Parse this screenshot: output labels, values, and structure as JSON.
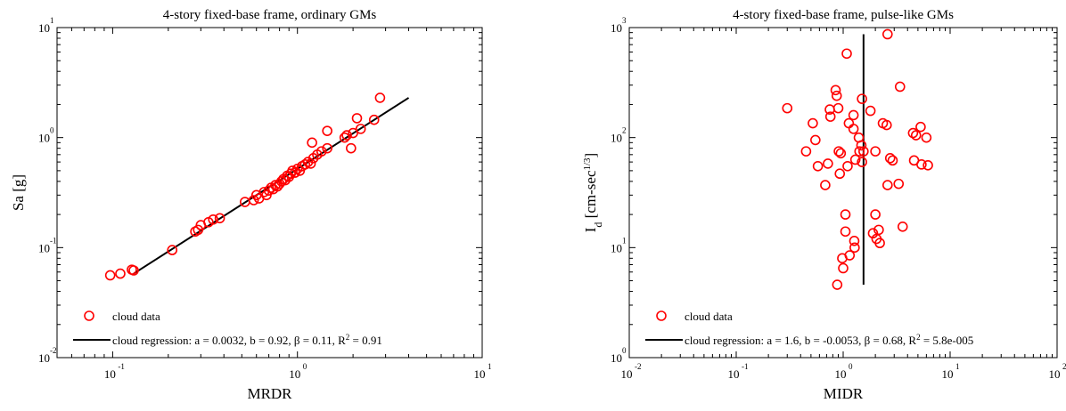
{
  "chart_data": [
    {
      "type": "scatter",
      "title": "4-story fixed-base frame, ordinary GMs",
      "xlabel": "MRDR",
      "ylabel": "Sa  [g]",
      "xscale": "log",
      "yscale": "log",
      "xlim": [
        0.05,
        10
      ],
      "ylim": [
        0.01,
        10
      ],
      "xticks": [
        {
          "base": "10",
          "exp": "-1",
          "value": 0.1
        },
        {
          "base": "10",
          "exp": "0",
          "value": 1
        },
        {
          "base": "10",
          "exp": "1",
          "value": 10
        }
      ],
      "yticks": [
        {
          "base": "10",
          "exp": "-2",
          "value": 0.01
        },
        {
          "base": "10",
          "exp": "-1",
          "value": 0.1
        },
        {
          "base": "10",
          "exp": "0",
          "value": 1
        },
        {
          "base": "10",
          "exp": "1",
          "value": 10
        }
      ],
      "grid": false,
      "legend_position": "bottom-left",
      "legend": {
        "scatter": "cloud data",
        "line": "cloud regression: a = 0.0032, b = 0.92, β = 0.11, R",
        "line_sup": "2",
        "line_tail": " = 0.91"
      },
      "series": [
        {
          "name": "cloud data",
          "marker": "circle",
          "color": "#ff0000",
          "points": [
            [
              0.097,
              0.056
            ],
            [
              0.11,
              0.058
            ],
            [
              0.127,
              0.063
            ],
            [
              0.13,
              0.062
            ],
            [
              0.21,
              0.095
            ],
            [
              0.28,
              0.14
            ],
            [
              0.29,
              0.145
            ],
            [
              0.3,
              0.16
            ],
            [
              0.33,
              0.17
            ],
            [
              0.35,
              0.18
            ],
            [
              0.38,
              0.185
            ],
            [
              0.52,
              0.26
            ],
            [
              0.58,
              0.27
            ],
            [
              0.6,
              0.3
            ],
            [
              0.62,
              0.28
            ],
            [
              0.66,
              0.32
            ],
            [
              0.68,
              0.3
            ],
            [
              0.7,
              0.33
            ],
            [
              0.72,
              0.35
            ],
            [
              0.74,
              0.34
            ],
            [
              0.76,
              0.37
            ],
            [
              0.78,
              0.36
            ],
            [
              0.8,
              0.38
            ],
            [
              0.82,
              0.4
            ],
            [
              0.84,
              0.42
            ],
            [
              0.86,
              0.41
            ],
            [
              0.88,
              0.45
            ],
            [
              0.9,
              0.44
            ],
            [
              0.92,
              0.47
            ],
            [
              0.94,
              0.5
            ],
            [
              0.97,
              0.48
            ],
            [
              1.0,
              0.52
            ],
            [
              1.03,
              0.5
            ],
            [
              1.06,
              0.55
            ],
            [
              1.1,
              0.57
            ],
            [
              1.14,
              0.6
            ],
            [
              1.18,
              0.58
            ],
            [
              1.22,
              0.65
            ],
            [
              1.28,
              0.7
            ],
            [
              1.35,
              0.75
            ],
            [
              1.45,
              0.8
            ],
            [
              1.2,
              0.9
            ],
            [
              1.45,
              1.15
            ],
            [
              1.8,
              1.0
            ],
            [
              1.85,
              1.05
            ],
            [
              1.95,
              0.8
            ],
            [
              2.0,
              1.1
            ],
            [
              2.1,
              1.5
            ],
            [
              2.2,
              1.2
            ],
            [
              2.6,
              1.45
            ],
            [
              2.8,
              2.3
            ]
          ]
        },
        {
          "name": "cloud regression",
          "type": "line",
          "color": "#000000",
          "x": [
            0.13,
            4.0
          ],
          "y": [
            0.058,
            2.3
          ]
        }
      ]
    },
    {
      "type": "scatter",
      "title": "4-story fixed-base frame, pulse-like GMs",
      "xlabel": "MIDR",
      "ylabel": "I",
      "ylabel_sub": "d",
      "ylabel_tail": " [cm-sec",
      "ylabel_sup": "1/3",
      "ylabel_end": "]",
      "xscale": "log",
      "yscale": "log",
      "xlim": [
        0.01,
        100
      ],
      "ylim": [
        1,
        1000
      ],
      "xticks": [
        {
          "base": "10",
          "exp": "-2",
          "value": 0.01
        },
        {
          "base": "10",
          "exp": "-1",
          "value": 0.1
        },
        {
          "base": "10",
          "exp": "0",
          "value": 1
        },
        {
          "base": "10",
          "exp": "1",
          "value": 10
        },
        {
          "base": "10",
          "exp": "2",
          "value": 100
        }
      ],
      "yticks": [
        {
          "base": "10",
          "exp": "0",
          "value": 1
        },
        {
          "base": "10",
          "exp": "1",
          "value": 10
        },
        {
          "base": "10",
          "exp": "2",
          "value": 100
        },
        {
          "base": "10",
          "exp": "3",
          "value": 1000
        }
      ],
      "grid": false,
      "legend_position": "bottom-left",
      "legend": {
        "scatter": "cloud data",
        "line": "cloud regression: a = 1.6, b = -0.0053, β = 0.68, R",
        "line_sup": "2",
        "line_tail": " = 5.8e-005"
      },
      "series": [
        {
          "name": "cloud data",
          "marker": "circle",
          "color": "#ff0000",
          "points": [
            [
              0.3,
              185
            ],
            [
              0.45,
              75
            ],
            [
              0.52,
              135
            ],
            [
              0.55,
              95
            ],
            [
              0.58,
              55
            ],
            [
              0.68,
              37
            ],
            [
              0.72,
              58
            ],
            [
              0.75,
              180
            ],
            [
              0.76,
              155
            ],
            [
              0.85,
              270
            ],
            [
              0.87,
              240
            ],
            [
              0.88,
              4.6
            ],
            [
              0.9,
              185
            ],
            [
              0.91,
              75
            ],
            [
              0.93,
              47
            ],
            [
              0.95,
              72
            ],
            [
              0.98,
              8
            ],
            [
              1.0,
              6.5
            ],
            [
              1.05,
              20
            ],
            [
              1.05,
              14
            ],
            [
              1.08,
              580
            ],
            [
              1.1,
              55
            ],
            [
              1.13,
              135
            ],
            [
              1.15,
              8.5
            ],
            [
              1.25,
              160
            ],
            [
              1.25,
              120
            ],
            [
              1.27,
              11.5
            ],
            [
              1.28,
              10
            ],
            [
              1.3,
              63
            ],
            [
              1.4,
              100
            ],
            [
              1.42,
              75
            ],
            [
              1.48,
              85
            ],
            [
              1.5,
              60
            ],
            [
              1.5,
              225
            ],
            [
              1.55,
              75
            ],
            [
              1.8,
              175
            ],
            [
              1.9,
              13.5
            ],
            [
              2.0,
              75
            ],
            [
              2.0,
              20
            ],
            [
              2.05,
              12
            ],
            [
              2.15,
              14.5
            ],
            [
              2.2,
              11
            ],
            [
              2.35,
              135
            ],
            [
              2.55,
              130
            ],
            [
              2.6,
              870
            ],
            [
              2.6,
              37
            ],
            [
              2.75,
              65
            ],
            [
              2.9,
              62
            ],
            [
              3.3,
              38
            ],
            [
              3.4,
              290
            ],
            [
              3.6,
              15.5
            ],
            [
              4.5,
              110
            ],
            [
              4.6,
              62
            ],
            [
              4.8,
              105
            ],
            [
              5.3,
              125
            ],
            [
              5.4,
              57
            ],
            [
              6.0,
              100
            ],
            [
              6.2,
              56
            ]
          ]
        },
        {
          "name": "cloud regression",
          "type": "line",
          "color": "#000000",
          "x": [
            1.55,
            1.55
          ],
          "y": [
            4.6,
            870
          ]
        }
      ]
    }
  ]
}
